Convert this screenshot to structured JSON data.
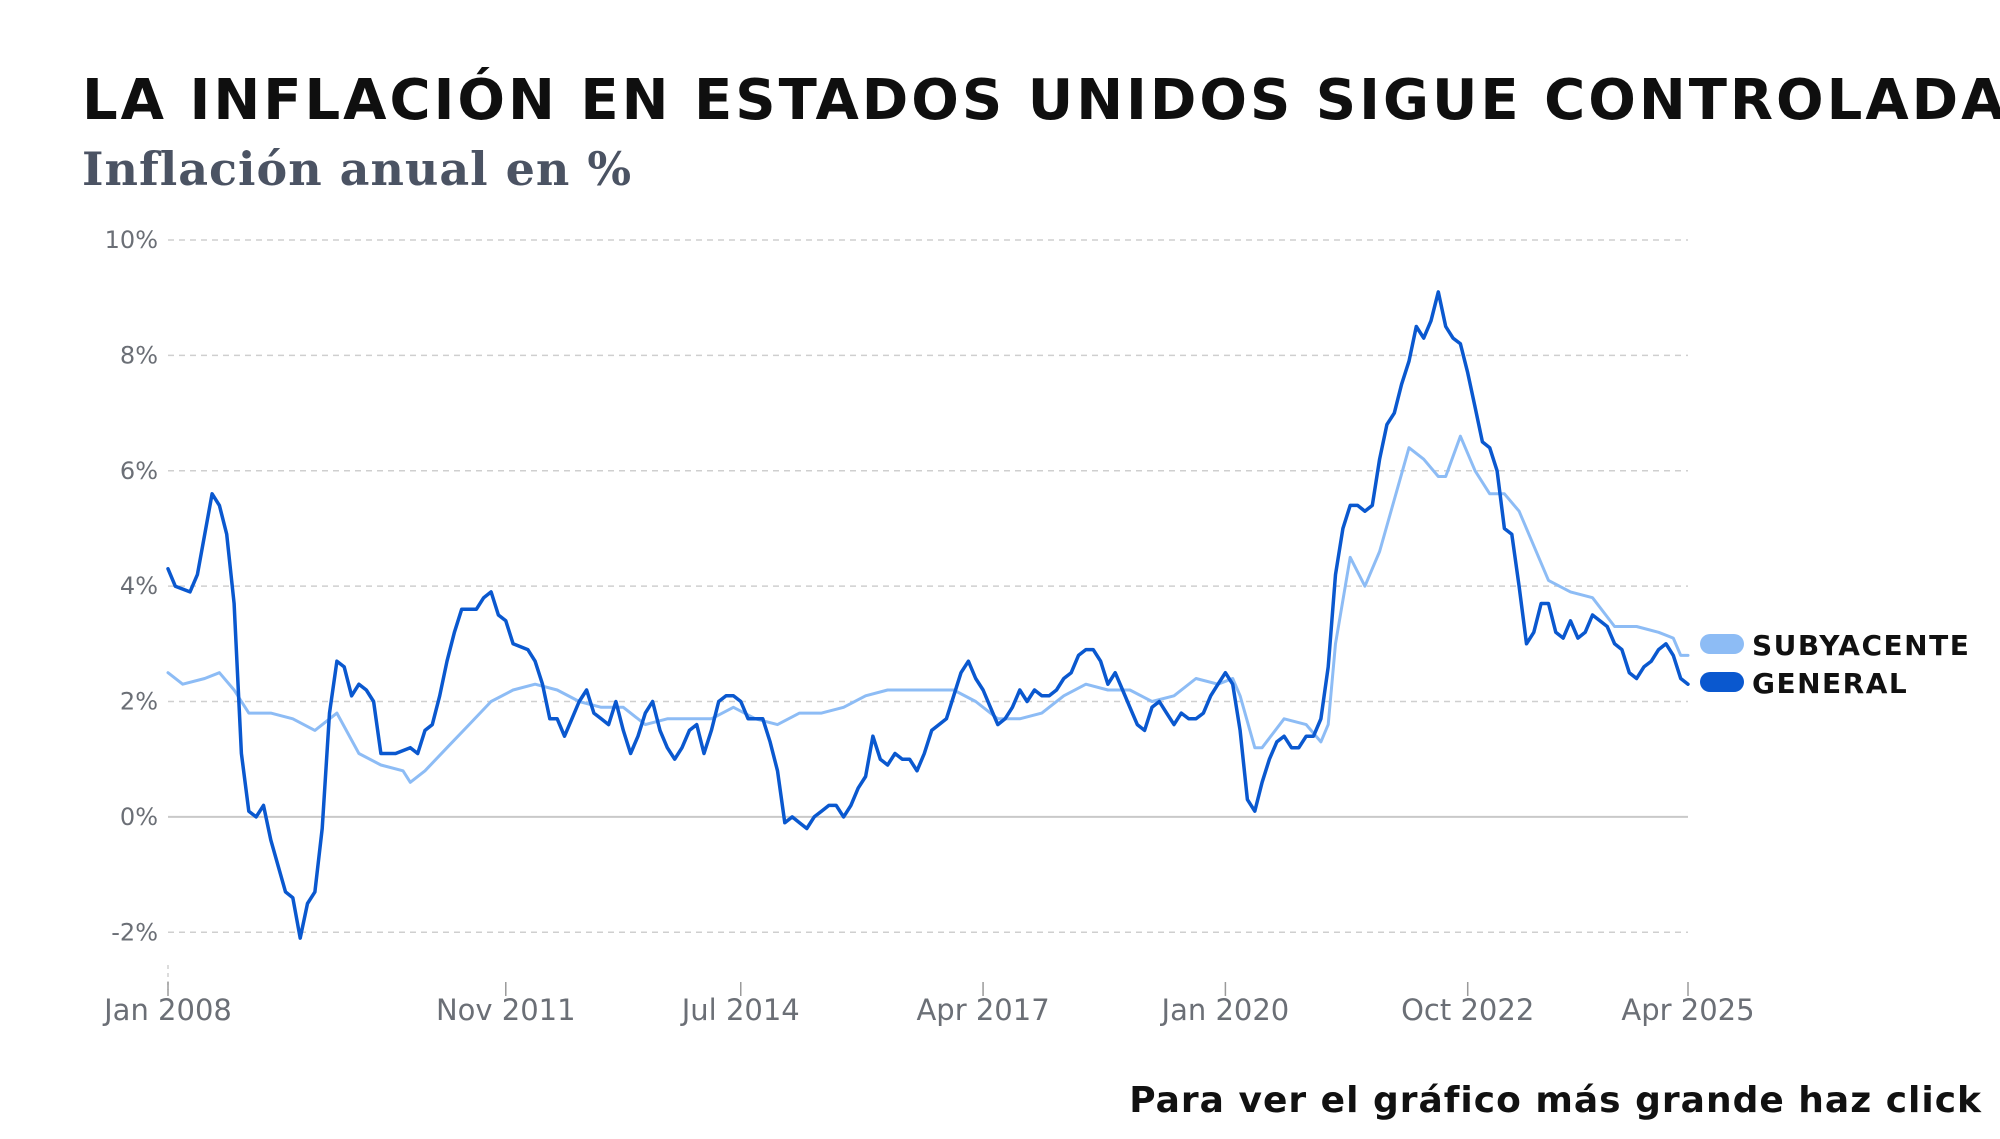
{
  "header": {
    "title": "LA INFLACIÓN EN ESTADOS UNIDOS SIGUE CONTROLADA",
    "subtitle": "Inflación anual en %"
  },
  "footer": {
    "cta": "Para ver el gráfico más grande haz click"
  },
  "colors": {
    "subyacente": "#8dbcf5",
    "general": "#0a58cf",
    "grid": "#cfcfcf",
    "zero": "#c9c9c9"
  },
  "chart_data": {
    "type": "line",
    "title": "LA INFLACIÓN EN ESTADOS UNIDOS SIGUE CONTROLADA",
    "subtitle": "Inflación anual en %",
    "xlabel": "",
    "ylabel": "",
    "x_ticks": [
      "Jan 2008",
      "Nov 2011",
      "Jul 2014",
      "Apr 2017",
      "Jan 2020",
      "Oct 2022",
      "Apr 2025"
    ],
    "y_ticks": [
      "-2%",
      "0%",
      "2%",
      "4%",
      "6%",
      "8%",
      "10%"
    ],
    "ylim": [
      -3,
      10
    ],
    "x_range": [
      "2008-01",
      "2025-04"
    ],
    "grid": "horizontal dashed",
    "legend_position": "right",
    "series": [
      {
        "name": "SUBYACENTE",
        "color": "#8dbcf5",
        "points": [
          [
            "2008-01",
            2.5
          ],
          [
            "2008-03",
            2.3
          ],
          [
            "2008-06",
            2.4
          ],
          [
            "2008-08",
            2.5
          ],
          [
            "2008-10",
            2.2
          ],
          [
            "2008-12",
            1.8
          ],
          [
            "2009-03",
            1.8
          ],
          [
            "2009-06",
            1.7
          ],
          [
            "2009-09",
            1.5
          ],
          [
            "2009-12",
            1.8
          ],
          [
            "2010-03",
            1.1
          ],
          [
            "2010-06",
            0.9
          ],
          [
            "2010-09",
            0.8
          ],
          [
            "2010-10",
            0.6
          ],
          [
            "2010-12",
            0.8
          ],
          [
            "2011-03",
            1.2
          ],
          [
            "2011-06",
            1.6
          ],
          [
            "2011-09",
            2.0
          ],
          [
            "2011-12",
            2.2
          ],
          [
            "2012-03",
            2.3
          ],
          [
            "2012-06",
            2.2
          ],
          [
            "2012-09",
            2.0
          ],
          [
            "2012-12",
            1.9
          ],
          [
            "2013-03",
            1.9
          ],
          [
            "2013-06",
            1.6
          ],
          [
            "2013-09",
            1.7
          ],
          [
            "2013-12",
            1.7
          ],
          [
            "2014-03",
            1.7
          ],
          [
            "2014-06",
            1.9
          ],
          [
            "2014-09",
            1.7
          ],
          [
            "2014-12",
            1.6
          ],
          [
            "2015-03",
            1.8
          ],
          [
            "2015-06",
            1.8
          ],
          [
            "2015-09",
            1.9
          ],
          [
            "2015-12",
            2.1
          ],
          [
            "2016-03",
            2.2
          ],
          [
            "2016-06",
            2.2
          ],
          [
            "2016-09",
            2.2
          ],
          [
            "2016-12",
            2.2
          ],
          [
            "2017-03",
            2.0
          ],
          [
            "2017-06",
            1.7
          ],
          [
            "2017-09",
            1.7
          ],
          [
            "2017-12",
            1.8
          ],
          [
            "2018-03",
            2.1
          ],
          [
            "2018-06",
            2.3
          ],
          [
            "2018-09",
            2.2
          ],
          [
            "2018-12",
            2.2
          ],
          [
            "2019-03",
            2.0
          ],
          [
            "2019-06",
            2.1
          ],
          [
            "2019-09",
            2.4
          ],
          [
            "2019-12",
            2.3
          ],
          [
            "2020-02",
            2.4
          ],
          [
            "2020-03",
            2.1
          ],
          [
            "2020-05",
            1.2
          ],
          [
            "2020-06",
            1.2
          ],
          [
            "2020-09",
            1.7
          ],
          [
            "2020-12",
            1.6
          ],
          [
            "2021-02",
            1.3
          ],
          [
            "2021-03",
            1.6
          ],
          [
            "2021-04",
            3.0
          ],
          [
            "2021-06",
            4.5
          ],
          [
            "2021-08",
            4.0
          ],
          [
            "2021-10",
            4.6
          ],
          [
            "2021-12",
            5.5
          ],
          [
            "2022-02",
            6.4
          ],
          [
            "2022-04",
            6.2
          ],
          [
            "2022-06",
            5.9
          ],
          [
            "2022-07",
            5.9
          ],
          [
            "2022-09",
            6.6
          ],
          [
            "2022-11",
            6.0
          ],
          [
            "2023-01",
            5.6
          ],
          [
            "2023-03",
            5.6
          ],
          [
            "2023-05",
            5.3
          ],
          [
            "2023-07",
            4.7
          ],
          [
            "2023-09",
            4.1
          ],
          [
            "2023-12",
            3.9
          ],
          [
            "2024-03",
            3.8
          ],
          [
            "2024-06",
            3.3
          ],
          [
            "2024-09",
            3.3
          ],
          [
            "2024-12",
            3.2
          ],
          [
            "2025-02",
            3.1
          ],
          [
            "2025-03",
            2.8
          ],
          [
            "2025-04",
            2.8
          ]
        ]
      },
      {
        "name": "GENERAL",
        "color": "#0a58cf",
        "points": [
          [
            "2008-01",
            4.3
          ],
          [
            "2008-02",
            4.0
          ],
          [
            "2008-04",
            3.9
          ],
          [
            "2008-05",
            4.2
          ],
          [
            "2008-07",
            5.6
          ],
          [
            "2008-08",
            5.4
          ],
          [
            "2008-09",
            4.9
          ],
          [
            "2008-10",
            3.7
          ],
          [
            "2008-11",
            1.1
          ],
          [
            "2008-12",
            0.1
          ],
          [
            "2009-01",
            0.0
          ],
          [
            "2009-02",
            0.2
          ],
          [
            "2009-03",
            -0.4
          ],
          [
            "2009-05",
            -1.3
          ],
          [
            "2009-06",
            -1.4
          ],
          [
            "2009-07",
            -2.1
          ],
          [
            "2009-08",
            -1.5
          ],
          [
            "2009-09",
            -1.3
          ],
          [
            "2009-10",
            -0.2
          ],
          [
            "2009-11",
            1.8
          ],
          [
            "2009-12",
            2.7
          ],
          [
            "2010-01",
            2.6
          ],
          [
            "2010-02",
            2.1
          ],
          [
            "2010-03",
            2.3
          ],
          [
            "2010-04",
            2.2
          ],
          [
            "2010-05",
            2.0
          ],
          [
            "2010-06",
            1.1
          ],
          [
            "2010-08",
            1.1
          ],
          [
            "2010-10",
            1.2
          ],
          [
            "2010-11",
            1.1
          ],
          [
            "2010-12",
            1.5
          ],
          [
            "2011-01",
            1.6
          ],
          [
            "2011-02",
            2.1
          ],
          [
            "2011-03",
            2.7
          ],
          [
            "2011-04",
            3.2
          ],
          [
            "2011-05",
            3.6
          ],
          [
            "2011-06",
            3.6
          ],
          [
            "2011-07",
            3.6
          ],
          [
            "2011-08",
            3.8
          ],
          [
            "2011-09",
            3.9
          ],
          [
            "2011-10",
            3.5
          ],
          [
            "2011-11",
            3.4
          ],
          [
            "2011-12",
            3.0
          ],
          [
            "2012-02",
            2.9
          ],
          [
            "2012-03",
            2.7
          ],
          [
            "2012-04",
            2.3
          ],
          [
            "2012-05",
            1.7
          ],
          [
            "2012-06",
            1.7
          ],
          [
            "2012-07",
            1.4
          ],
          [
            "2012-08",
            1.7
          ],
          [
            "2012-09",
            2.0
          ],
          [
            "2012-10",
            2.2
          ],
          [
            "2012-11",
            1.8
          ],
          [
            "2012-12",
            1.7
          ],
          [
            "2013-01",
            1.6
          ],
          [
            "2013-02",
            2.0
          ],
          [
            "2013-03",
            1.5
          ],
          [
            "2013-04",
            1.1
          ],
          [
            "2013-05",
            1.4
          ],
          [
            "2013-06",
            1.8
          ],
          [
            "2013-07",
            2.0
          ],
          [
            "2013-08",
            1.5
          ],
          [
            "2013-09",
            1.2
          ],
          [
            "2013-10",
            1.0
          ],
          [
            "2013-11",
            1.2
          ],
          [
            "2013-12",
            1.5
          ],
          [
            "2014-01",
            1.6
          ],
          [
            "2014-02",
            1.1
          ],
          [
            "2014-03",
            1.5
          ],
          [
            "2014-04",
            2.0
          ],
          [
            "2014-05",
            2.1
          ],
          [
            "2014-06",
            2.1
          ],
          [
            "2014-07",
            2.0
          ],
          [
            "2014-08",
            1.7
          ],
          [
            "2014-09",
            1.7
          ],
          [
            "2014-10",
            1.7
          ],
          [
            "2014-11",
            1.3
          ],
          [
            "2014-12",
            0.8
          ],
          [
            "2015-01",
            -0.1
          ],
          [
            "2015-02",
            0.0
          ],
          [
            "2015-03",
            -0.1
          ],
          [
            "2015-04",
            -0.2
          ],
          [
            "2015-05",
            0.0
          ],
          [
            "2015-06",
            0.1
          ],
          [
            "2015-07",
            0.2
          ],
          [
            "2015-08",
            0.2
          ],
          [
            "2015-09",
            0.0
          ],
          [
            "2015-10",
            0.2
          ],
          [
            "2015-11",
            0.5
          ],
          [
            "2015-12",
            0.7
          ],
          [
            "2016-01",
            1.4
          ],
          [
            "2016-02",
            1.0
          ],
          [
            "2016-03",
            0.9
          ],
          [
            "2016-04",
            1.1
          ],
          [
            "2016-05",
            1.0
          ],
          [
            "2016-06",
            1.0
          ],
          [
            "2016-07",
            0.8
          ],
          [
            "2016-08",
            1.1
          ],
          [
            "2016-09",
            1.5
          ],
          [
            "2016-10",
            1.6
          ],
          [
            "2016-11",
            1.7
          ],
          [
            "2016-12",
            2.1
          ],
          [
            "2017-01",
            2.5
          ],
          [
            "2017-02",
            2.7
          ],
          [
            "2017-03",
            2.4
          ],
          [
            "2017-04",
            2.2
          ],
          [
            "2017-05",
            1.9
          ],
          [
            "2017-06",
            1.6
          ],
          [
            "2017-07",
            1.7
          ],
          [
            "2017-08",
            1.9
          ],
          [
            "2017-09",
            2.2
          ],
          [
            "2017-10",
            2.0
          ],
          [
            "2017-11",
            2.2
          ],
          [
            "2017-12",
            2.1
          ],
          [
            "2018-01",
            2.1
          ],
          [
            "2018-02",
            2.2
          ],
          [
            "2018-03",
            2.4
          ],
          [
            "2018-04",
            2.5
          ],
          [
            "2018-05",
            2.8
          ],
          [
            "2018-06",
            2.9
          ],
          [
            "2018-07",
            2.9
          ],
          [
            "2018-08",
            2.7
          ],
          [
            "2018-09",
            2.3
          ],
          [
            "2018-10",
            2.5
          ],
          [
            "2018-11",
            2.2
          ],
          [
            "2018-12",
            1.9
          ],
          [
            "2019-01",
            1.6
          ],
          [
            "2019-02",
            1.5
          ],
          [
            "2019-03",
            1.9
          ],
          [
            "2019-04",
            2.0
          ],
          [
            "2019-05",
            1.8
          ],
          [
            "2019-06",
            1.6
          ],
          [
            "2019-07",
            1.8
          ],
          [
            "2019-08",
            1.7
          ],
          [
            "2019-09",
            1.7
          ],
          [
            "2019-10",
            1.8
          ],
          [
            "2019-11",
            2.1
          ],
          [
            "2019-12",
            2.3
          ],
          [
            "2020-01",
            2.5
          ],
          [
            "2020-02",
            2.3
          ],
          [
            "2020-03",
            1.5
          ],
          [
            "2020-04",
            0.3
          ],
          [
            "2020-05",
            0.1
          ],
          [
            "2020-06",
            0.6
          ],
          [
            "2020-07",
            1.0
          ],
          [
            "2020-08",
            1.3
          ],
          [
            "2020-09",
            1.4
          ],
          [
            "2020-10",
            1.2
          ],
          [
            "2020-11",
            1.2
          ],
          [
            "2020-12",
            1.4
          ],
          [
            "2021-01",
            1.4
          ],
          [
            "2021-02",
            1.7
          ],
          [
            "2021-03",
            2.6
          ],
          [
            "2021-04",
            4.2
          ],
          [
            "2021-05",
            5.0
          ],
          [
            "2021-06",
            5.4
          ],
          [
            "2021-07",
            5.4
          ],
          [
            "2021-08",
            5.3
          ],
          [
            "2021-09",
            5.4
          ],
          [
            "2021-10",
            6.2
          ],
          [
            "2021-11",
            6.8
          ],
          [
            "2021-12",
            7.0
          ],
          [
            "2022-01",
            7.5
          ],
          [
            "2022-02",
            7.9
          ],
          [
            "2022-03",
            8.5
          ],
          [
            "2022-04",
            8.3
          ],
          [
            "2022-05",
            8.6
          ],
          [
            "2022-06",
            9.1
          ],
          [
            "2022-07",
            8.5
          ],
          [
            "2022-08",
            8.3
          ],
          [
            "2022-09",
            8.2
          ],
          [
            "2022-10",
            7.7
          ],
          [
            "2022-11",
            7.1
          ],
          [
            "2022-12",
            6.5
          ],
          [
            "2023-01",
            6.4
          ],
          [
            "2023-02",
            6.0
          ],
          [
            "2023-03",
            5.0
          ],
          [
            "2023-04",
            4.9
          ],
          [
            "2023-05",
            4.0
          ],
          [
            "2023-06",
            3.0
          ],
          [
            "2023-07",
            3.2
          ],
          [
            "2023-08",
            3.7
          ],
          [
            "2023-09",
            3.7
          ],
          [
            "2023-10",
            3.2
          ],
          [
            "2023-11",
            3.1
          ],
          [
            "2023-12",
            3.4
          ],
          [
            "2024-01",
            3.1
          ],
          [
            "2024-02",
            3.2
          ],
          [
            "2024-03",
            3.5
          ],
          [
            "2024-04",
            3.4
          ],
          [
            "2024-05",
            3.3
          ],
          [
            "2024-06",
            3.0
          ],
          [
            "2024-07",
            2.9
          ],
          [
            "2024-08",
            2.5
          ],
          [
            "2024-09",
            2.4
          ],
          [
            "2024-10",
            2.6
          ],
          [
            "2024-11",
            2.7
          ],
          [
            "2024-12",
            2.9
          ],
          [
            "2025-01",
            3.0
          ],
          [
            "2025-02",
            2.8
          ],
          [
            "2025-03",
            2.4
          ],
          [
            "2025-04",
            2.3
          ]
        ]
      }
    ]
  }
}
